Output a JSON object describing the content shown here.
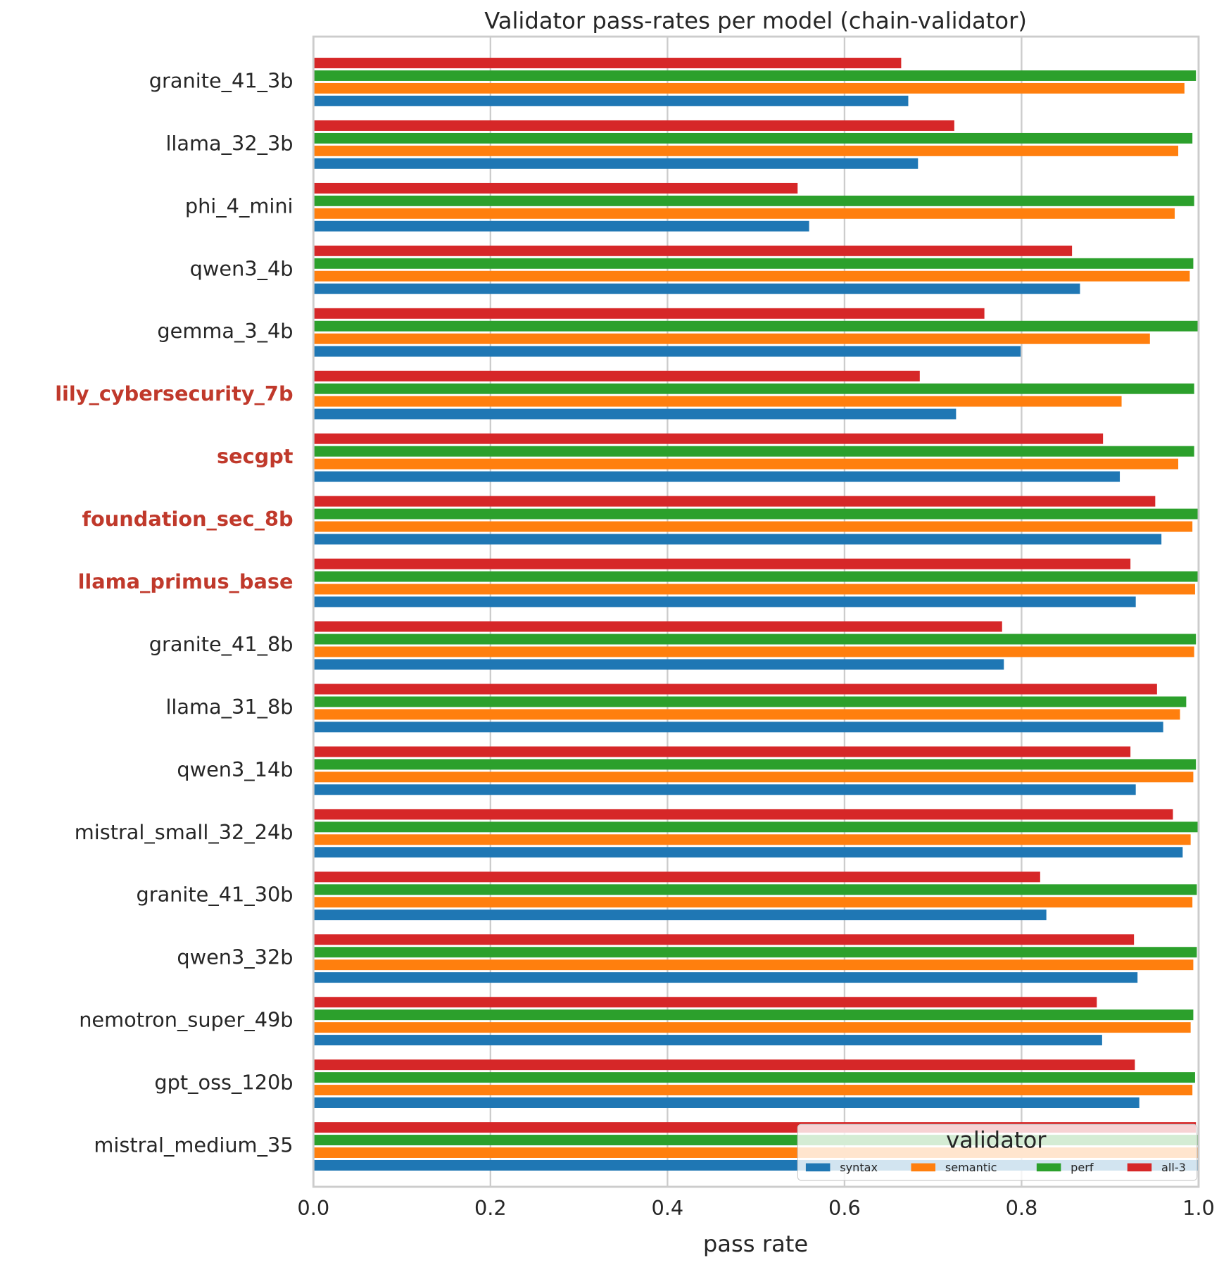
{
  "chart_data": {
    "type": "bar",
    "orientation": "horizontal",
    "title": "Validator pass-rates per model (chain-validator)",
    "x_label": "pass rate",
    "categories": [
      "granite_41_3b",
      "llama_32_3b",
      "phi_4_mini",
      "qwen3_4b",
      "gemma_3_4b",
      "lily_cybersecurity_7b",
      "secgpt",
      "foundation_sec_8b",
      "llama_primus_base",
      "granite_41_8b",
      "llama_31_8b",
      "qwen3_14b",
      "mistral_small_32_24b",
      "granite_41_30b",
      "qwen3_32b",
      "nemotron_super_49b",
      "gpt_oss_120b",
      "mistral_medium_35"
    ],
    "highlighted_categories": [
      5,
      6,
      7,
      8
    ],
    "highlight_color": "#c0392b",
    "series": [
      {
        "name": "syntax",
        "color": "#1f77b4",
        "values": [
          0.672,
          0.683,
          0.56,
          0.866,
          0.799,
          0.726,
          0.911,
          0.958,
          0.929,
          0.78,
          0.96,
          0.929,
          0.982,
          0.828,
          0.931,
          0.891,
          0.933,
          0.999
        ]
      },
      {
        "name": "semantic",
        "color": "#ff7f0e",
        "values": [
          0.984,
          0.977,
          0.973,
          0.99,
          0.945,
          0.913,
          0.977,
          0.993,
          0.996,
          0.995,
          0.979,
          0.994,
          0.991,
          0.993,
          0.994,
          0.991,
          0.993,
          1.0
        ]
      },
      {
        "name": "perf",
        "color": "#2ca02c",
        "values": [
          0.997,
          0.993,
          0.995,
          0.994,
          0.999,
          0.995,
          0.995,
          1.0,
          0.999,
          0.997,
          0.986,
          0.997,
          0.999,
          0.998,
          0.998,
          0.994,
          0.996,
          1.0
        ]
      },
      {
        "name": "all-3",
        "color": "#d62728",
        "values": [
          0.664,
          0.724,
          0.547,
          0.857,
          0.758,
          0.685,
          0.892,
          0.951,
          0.923,
          0.778,
          0.953,
          0.923,
          0.971,
          0.821,
          0.927,
          0.885,
          0.928,
          0.997
        ]
      }
    ],
    "xlim": [
      0,
      1
    ],
    "xticks": [
      {
        "value": 0,
        "label": "0.0"
      },
      {
        "value": 0.2,
        "label": "0.2"
      },
      {
        "value": 0.4,
        "label": "0.4"
      },
      {
        "value": 0.6,
        "label": "0.6"
      },
      {
        "value": 0.8,
        "label": "0.8"
      },
      {
        "value": 1,
        "label": "1.0"
      }
    ],
    "grid": true,
    "legend_title": "validator",
    "legend_position": "lower right"
  }
}
